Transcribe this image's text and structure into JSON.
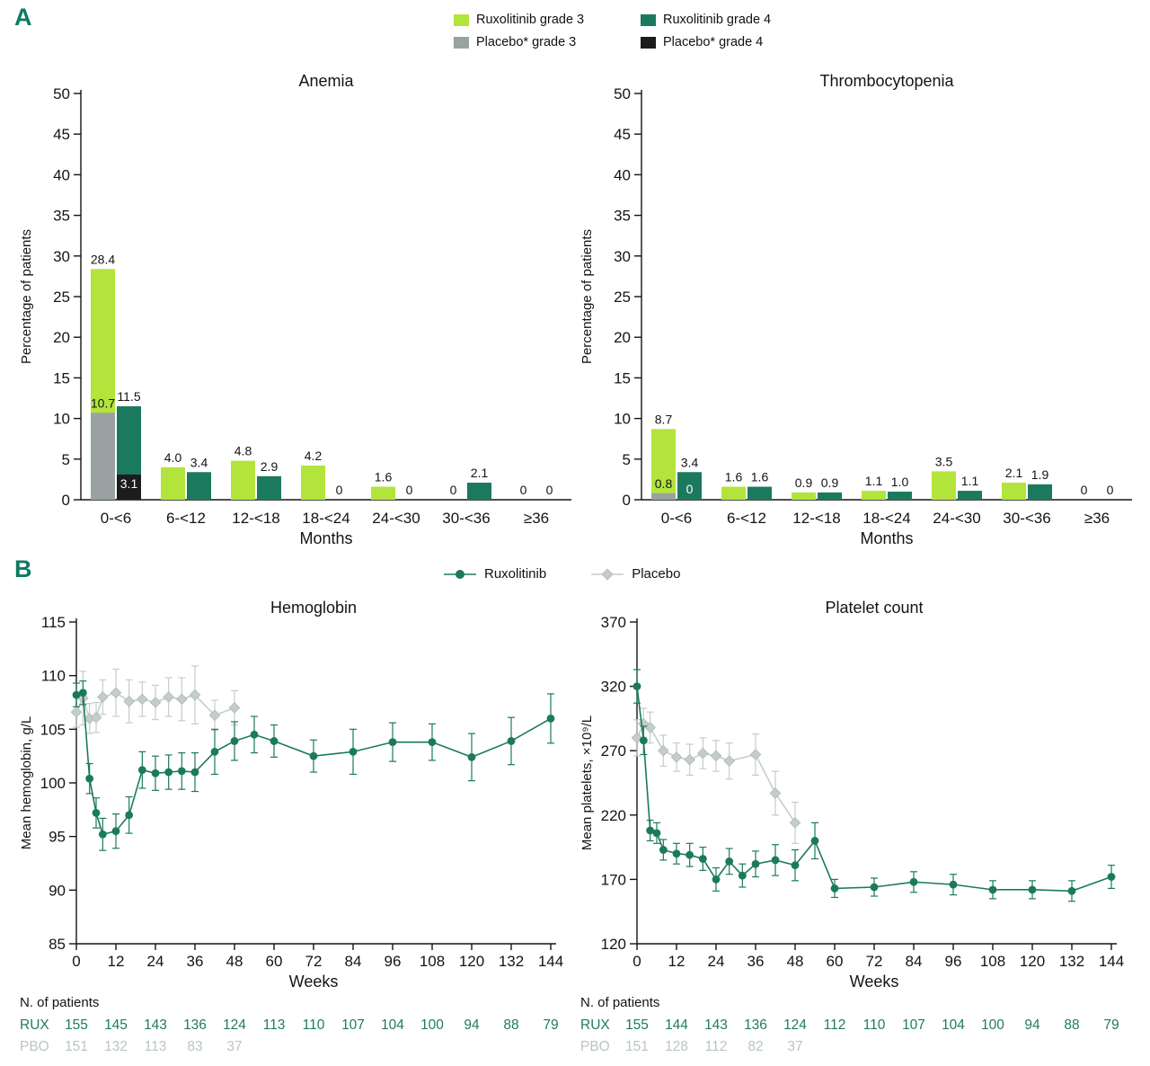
{
  "panelA": {
    "label": "A",
    "legend": {
      "rux_g3": {
        "label": "Ruxolitinib grade 3",
        "color": "#b2e43c"
      },
      "rux_g4": {
        "label": "Ruxolitinib grade 4",
        "color": "#1b7a5e"
      },
      "pbo_g3": {
        "label": "Placebo* grade 3",
        "color": "#9aa1a1"
      },
      "pbo_g4": {
        "label": "Placebo* grade 4",
        "color": "#1c1c1c"
      }
    }
  },
  "panelB": {
    "label": "B",
    "legend": {
      "rux": {
        "label": "Ruxolitinib",
        "color": "#1b7a5e"
      },
      "pbo": {
        "label": "Placebo",
        "color": "#c5cdc9"
      }
    }
  },
  "chart_data": [
    {
      "id": "anemia",
      "type": "bar",
      "title": "Anemia",
      "xlabel": "Months",
      "ylabel": "Percentage of patients",
      "ylim": [
        0,
        50
      ],
      "ytick_step": 5,
      "categories": [
        "0-<6",
        "6-<12",
        "12-<18",
        "18-<24",
        "24-<30",
        "30-<36",
        "≥36"
      ],
      "groups": [
        {
          "rux_g3": 28.4,
          "pbo_g3": 10.7,
          "rux_g4": 11.5,
          "pbo_g4": 3.1
        },
        {
          "rux_g3": 4.0,
          "rux_g4": 3.4
        },
        {
          "rux_g3": 4.8,
          "rux_g4": 2.9
        },
        {
          "rux_g3": 4.2,
          "rux_g4": 0
        },
        {
          "rux_g3": 1.6,
          "rux_g4": 0
        },
        {
          "rux_g3": 0,
          "rux_g4": 2.1
        },
        {
          "rux_g3": 0,
          "rux_g4": 0
        }
      ]
    },
    {
      "id": "thrombocytopenia",
      "type": "bar",
      "title": "Thrombocytopenia",
      "xlabel": "Months",
      "ylabel": "Percentage of patients",
      "ylim": [
        0,
        50
      ],
      "ytick_step": 5,
      "categories": [
        "0-<6",
        "6-<12",
        "12-<18",
        "18-<24",
        "24-<30",
        "30-<36",
        "≥36"
      ],
      "groups": [
        {
          "rux_g3": 8.7,
          "pbo_g3": 0.8,
          "rux_g4": 3.4,
          "pbo_g4": 0
        },
        {
          "rux_g3": 1.6,
          "rux_g4": 1.6
        },
        {
          "rux_g3": 0.9,
          "rux_g4": 0.9
        },
        {
          "rux_g3": 1.1,
          "rux_g4": 1.0
        },
        {
          "rux_g3": 3.5,
          "rux_g4": 1.1
        },
        {
          "rux_g3": 2.1,
          "rux_g4": 1.9
        },
        {
          "rux_g3": 0,
          "rux_g4": 0
        }
      ]
    },
    {
      "id": "hemoglobin",
      "type": "line",
      "title": "Hemoglobin",
      "xlabel": "Weeks",
      "ylabel": "Mean hemoglobin, g/L",
      "ylim": [
        85,
        115
      ],
      "ytick_step": 5,
      "xlim": [
        0,
        144
      ],
      "xtick_step": 12,
      "series": [
        {
          "name": "Ruxolitinib",
          "color": "#1b7a5e",
          "marker": "circle",
          "points": [
            [
              0,
              108.2,
              1.1
            ],
            [
              2,
              108.4,
              1.1
            ],
            [
              4,
              100.4,
              1.4
            ],
            [
              6,
              97.2,
              1.4
            ],
            [
              8,
              95.2,
              1.5
            ],
            [
              12,
              95.5,
              1.6
            ],
            [
              16,
              97.0,
              1.7
            ],
            [
              20,
              101.2,
              1.7
            ],
            [
              24,
              100.9,
              1.6
            ],
            [
              28,
              101.0,
              1.6
            ],
            [
              32,
              101.1,
              1.7
            ],
            [
              36,
              101.0,
              1.8
            ],
            [
              42,
              102.9,
              2.1
            ],
            [
              48,
              103.9,
              1.8
            ],
            [
              54,
              104.5,
              1.7
            ],
            [
              60,
              103.9,
              1.5
            ],
            [
              72,
              102.5,
              1.5
            ],
            [
              84,
              102.9,
              2.1
            ],
            [
              96,
              103.8,
              1.8
            ],
            [
              108,
              103.8,
              1.7
            ],
            [
              120,
              102.4,
              2.2
            ],
            [
              132,
              103.9,
              2.2
            ],
            [
              144,
              106.0,
              2.3
            ]
          ]
        },
        {
          "name": "Placebo",
          "color": "#c5cdc9",
          "marker": "diamond",
          "points": [
            [
              0,
              106.6,
              1.4
            ],
            [
              2,
              107.9,
              2.5
            ],
            [
              4,
              106.0,
              1.4
            ],
            [
              6,
              106.1,
              1.4
            ],
            [
              8,
              108.0,
              1.6
            ],
            [
              12,
              108.4,
              2.2
            ],
            [
              16,
              107.6,
              2.0
            ],
            [
              20,
              107.8,
              1.6
            ],
            [
              24,
              107.5,
              1.6
            ],
            [
              28,
              108.0,
              1.8
            ],
            [
              32,
              107.8,
              2.0
            ],
            [
              36,
              108.2,
              2.7
            ],
            [
              42,
              106.3,
              1.4
            ],
            [
              48,
              107.0,
              1.6
            ]
          ]
        }
      ],
      "n_patients": {
        "title": "N. of patients",
        "rows": [
          {
            "label": "RUX",
            "color": "#1f7c5f",
            "x": [
              0,
              12,
              24,
              36,
              48,
              60,
              72,
              84,
              96,
              108,
              120,
              132,
              144
            ],
            "values": [
              155,
              145,
              143,
              136,
              124,
              113,
              110,
              107,
              104,
              100,
              94,
              88,
              79
            ]
          },
          {
            "label": "PBO",
            "color": "#b9c6c0",
            "x": [
              0,
              12,
              24,
              36,
              48
            ],
            "values": [
              151,
              132,
              113,
              83,
              37
            ]
          }
        ]
      }
    },
    {
      "id": "platelets",
      "type": "line",
      "title": "Platelet count",
      "xlabel": "Weeks",
      "ylabel": "Mean platelets, ×10⁹/L",
      "ylim": [
        120,
        370
      ],
      "ytick_step": 50,
      "xlim": [
        0,
        144
      ],
      "xtick_step": 12,
      "series": [
        {
          "name": "Ruxolitinib",
          "color": "#1b7a5e",
          "marker": "circle",
          "points": [
            [
              0,
              320,
              13
            ],
            [
              2,
              278,
              11
            ],
            [
              4,
              208,
              8
            ],
            [
              6,
              206,
              8
            ],
            [
              8,
              193,
              8
            ],
            [
              12,
              190,
              8
            ],
            [
              16,
              189,
              9
            ],
            [
              20,
              186,
              9
            ],
            [
              24,
              170,
              9
            ],
            [
              28,
              184,
              10
            ],
            [
              32,
              173,
              9
            ],
            [
              36,
              182,
              10
            ],
            [
              42,
              185,
              12
            ],
            [
              48,
              181,
              12
            ],
            [
              54,
              200,
              14
            ],
            [
              60,
              163,
              7
            ],
            [
              72,
              164,
              7
            ],
            [
              84,
              168,
              8
            ],
            [
              96,
              166,
              8
            ],
            [
              108,
              162,
              7
            ],
            [
              120,
              162,
              7
            ],
            [
              132,
              161,
              8
            ],
            [
              144,
              172,
              9
            ]
          ]
        },
        {
          "name": "Placebo",
          "color": "#c5cdc9",
          "marker": "diamond",
          "points": [
            [
              0,
              280,
              14
            ],
            [
              2,
              291,
              12
            ],
            [
              4,
              288,
              12
            ],
            [
              8,
              270,
              12
            ],
            [
              12,
              265,
              11
            ],
            [
              16,
              263,
              12
            ],
            [
              20,
              268,
              12
            ],
            [
              24,
              266,
              12
            ],
            [
              28,
              262,
              14
            ],
            [
              36,
              267,
              16
            ],
            [
              42,
              237,
              17
            ],
            [
              48,
              214,
              16
            ]
          ]
        }
      ],
      "n_patients": {
        "title": "N. of patients",
        "rows": [
          {
            "label": "RUX",
            "color": "#1f7c5f",
            "x": [
              0,
              12,
              24,
              36,
              48,
              60,
              72,
              84,
              96,
              108,
              120,
              132,
              144
            ],
            "values": [
              155,
              144,
              143,
              136,
              124,
              112,
              110,
              107,
              104,
              100,
              94,
              88,
              79
            ]
          },
          {
            "label": "PBO",
            "color": "#b9c6c0",
            "x": [
              0,
              12,
              24,
              36,
              48
            ],
            "values": [
              151,
              128,
              112,
              82,
              37
            ]
          }
        ]
      }
    }
  ]
}
